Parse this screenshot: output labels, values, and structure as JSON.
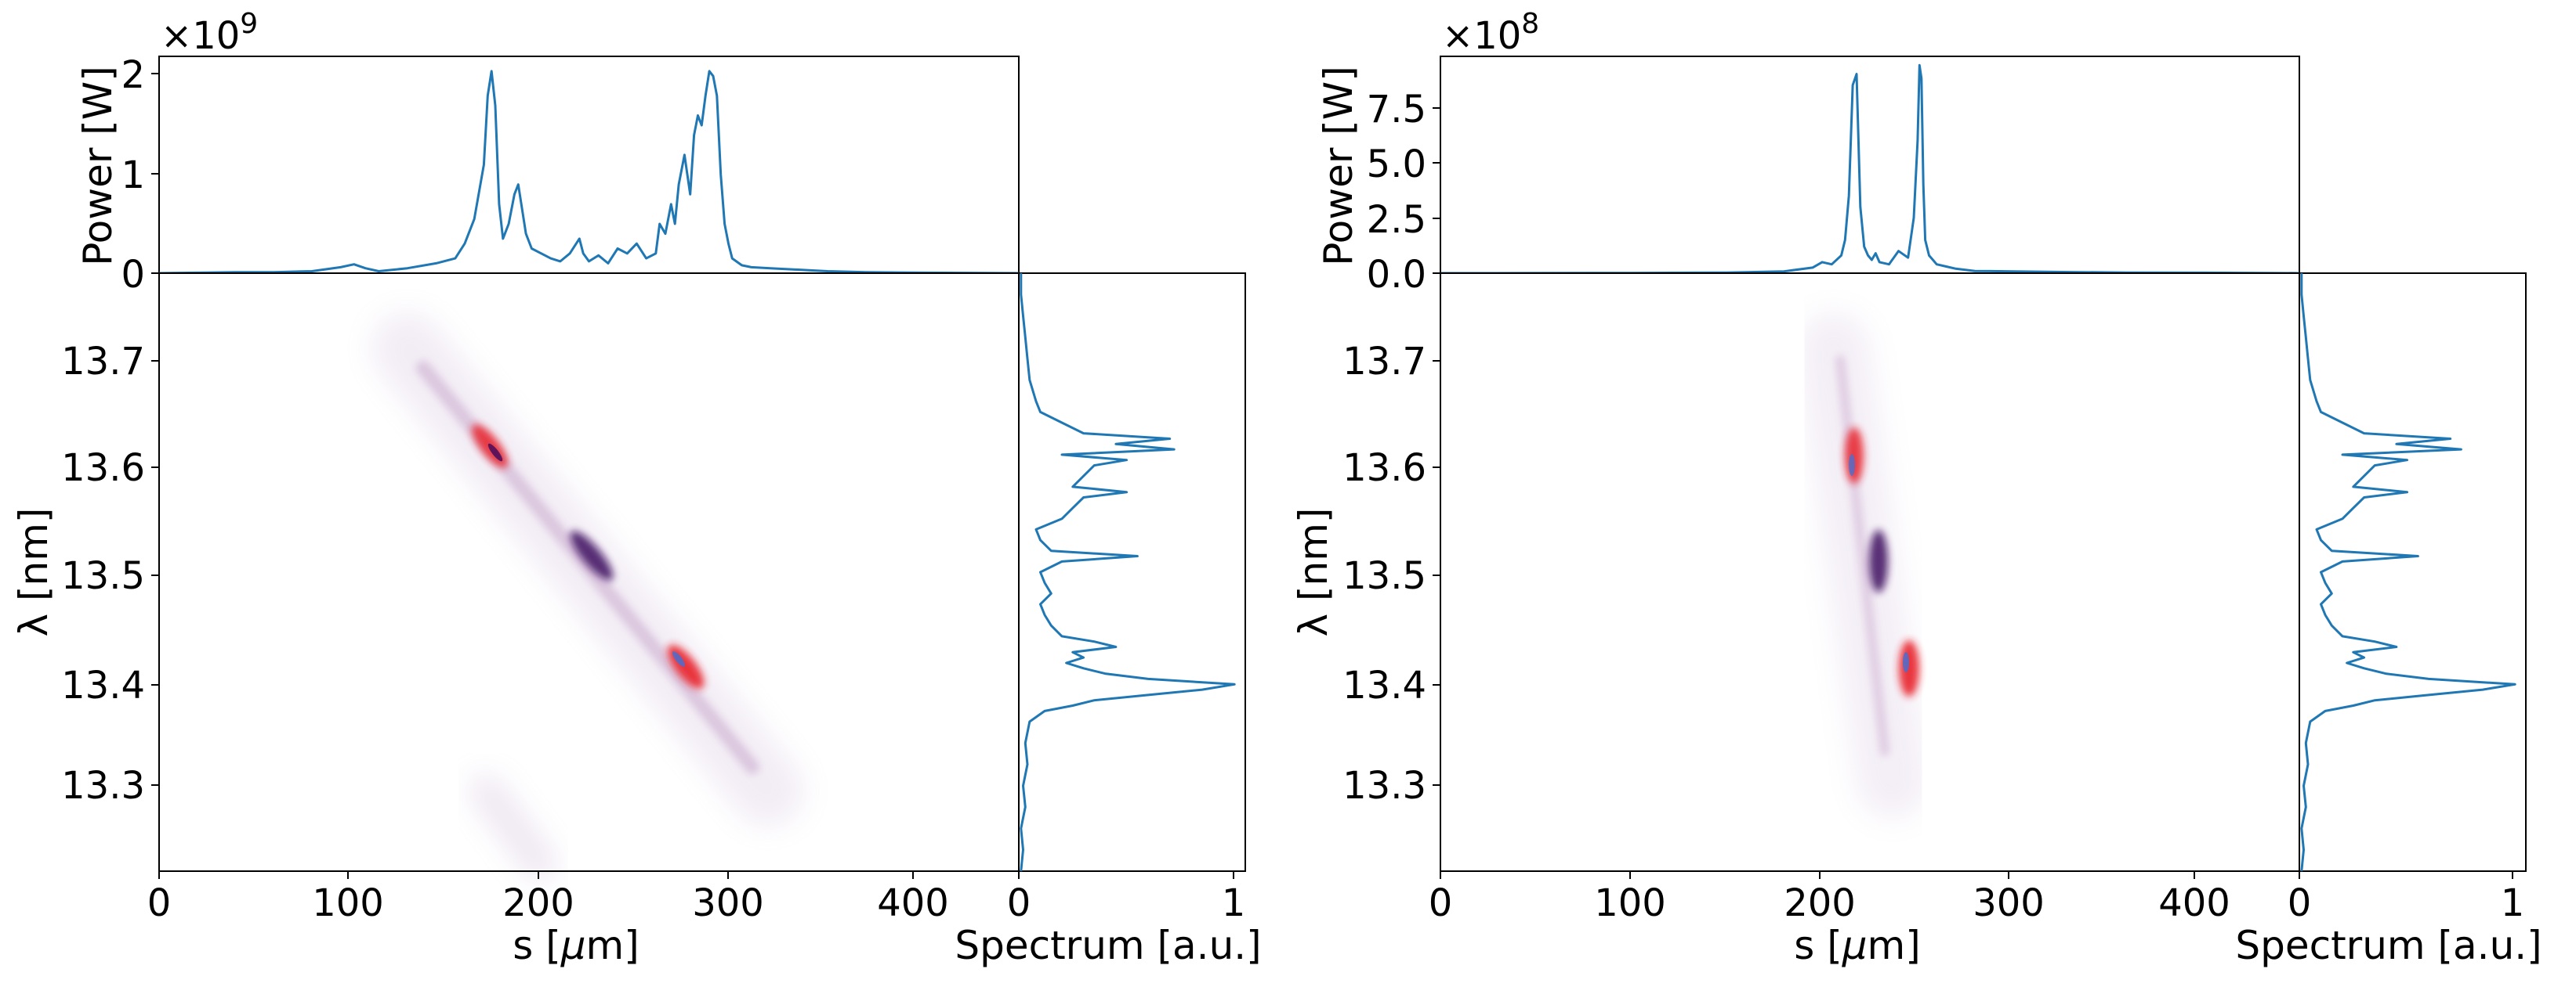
{
  "figure": {
    "panels": [
      {
        "power_offset_text": "×10",
        "power_offset_exp": "9",
        "power_yticks": [
          "0",
          "1",
          "2"
        ],
        "power_ylabel": "Power [W]",
        "map_yticks": [
          "13.3",
          "13.4",
          "13.5",
          "13.6",
          "13.7"
        ],
        "map_ylabel": "λ [nm]",
        "map_xticks": [
          "0",
          "100",
          "200",
          "300",
          "400"
        ],
        "map_xlabel_prefix": "s [",
        "map_xlabel_mu": "μ",
        "map_xlabel_suffix": "m]",
        "spec_xticks": [
          "0",
          "1"
        ],
        "spec_xlabel": "Spectrum [a.u.]"
      },
      {
        "power_offset_text": "×10",
        "power_offset_exp": "8",
        "power_yticks": [
          "0.0",
          "2.5",
          "5.0",
          "7.5"
        ],
        "power_ylabel": "Power [W]",
        "map_yticks": [
          "13.3",
          "13.4",
          "13.5",
          "13.6",
          "13.7"
        ],
        "map_ylabel": "λ [nm]",
        "map_xticks": [
          "0",
          "100",
          "200",
          "300",
          "400"
        ],
        "map_xlabel_prefix": "s [",
        "map_xlabel_mu": "μ",
        "map_xlabel_suffix": "m]",
        "spec_xticks": [
          "0",
          "1"
        ],
        "spec_xlabel": "Spectrum [a.u.]"
      }
    ]
  },
  "colors": {
    "line": "#1f77b4",
    "map_dark": "#3d0a5e",
    "map_mid": "#8b3f8f",
    "map_red": "#e8202a",
    "map_blue": "#4a6fd0"
  },
  "chart_data": [
    {
      "type": "line",
      "x": [
        0,
        20,
        40,
        60,
        80,
        95,
        102,
        108,
        115,
        130,
        145,
        155,
        160,
        165,
        170,
        172,
        174,
        176,
        178,
        180,
        183,
        186,
        188,
        190,
        192,
        195,
        200,
        205,
        210,
        215,
        220,
        222,
        225,
        230,
        235,
        240,
        245,
        250,
        255,
        260,
        262,
        265,
        268,
        270,
        272,
        275,
        278,
        280,
        282,
        284,
        286,
        288,
        290,
        292,
        294,
        296,
        298,
        300,
        305,
        310,
        320,
        330,
        340,
        350,
        370,
        400,
        450
      ],
      "y": [
        0,
        0.005,
        0.01,
        0.01,
        0.02,
        0.06,
        0.09,
        0.05,
        0.02,
        0.05,
        0.1,
        0.15,
        0.3,
        0.55,
        1.1,
        1.8,
        2.05,
        1.7,
        0.7,
        0.35,
        0.5,
        0.8,
        0.9,
        0.65,
        0.4,
        0.25,
        0.2,
        0.15,
        0.12,
        0.2,
        0.35,
        0.2,
        0.12,
        0.18,
        0.1,
        0.25,
        0.2,
        0.3,
        0.15,
        0.2,
        0.5,
        0.4,
        0.7,
        0.5,
        0.9,
        1.2,
        0.8,
        1.4,
        1.6,
        1.5,
        1.8,
        2.05,
        2.0,
        1.8,
        1.0,
        0.5,
        0.3,
        0.15,
        0.08,
        0.06,
        0.05,
        0.04,
        0.03,
        0.02,
        0.01,
        0.005,
        0
      ],
      "xlim": [
        0,
        450
      ],
      "ylim": [
        0,
        2.2
      ],
      "ylabel": "Power [W]",
      "y_scale_factor": "×10^9"
    },
    {
      "type": "heatmap",
      "xlabel": "s [μm]",
      "ylabel": "λ [nm]",
      "xlim": [
        0,
        450
      ],
      "ylim": [
        13.22,
        13.78
      ],
      "features": [
        {
          "kind": "streak",
          "from": [
            140,
            13.72
          ],
          "to": [
            345,
            13.31
          ],
          "intensity": 0.12
        },
        {
          "kind": "streak",
          "from": [
            185,
            13.3
          ],
          "to": [
            205,
            13.23
          ],
          "intensity": 0.1
        },
        {
          "kind": "spot",
          "x": 180,
          "y": 13.615,
          "color": "red"
        },
        {
          "kind": "spot",
          "x": 228,
          "y": 13.51,
          "color": "dark"
        },
        {
          "kind": "spot",
          "x": 284,
          "y": 13.405,
          "color": "red"
        }
      ]
    },
    {
      "type": "line",
      "orientation": "vertical",
      "y": [
        13.22,
        13.24,
        13.26,
        13.28,
        13.3,
        13.32,
        13.34,
        13.36,
        13.37,
        13.375,
        13.38,
        13.385,
        13.39,
        13.395,
        13.4,
        13.405,
        13.41,
        13.415,
        13.42,
        13.425,
        13.43,
        13.435,
        13.44,
        13.45,
        13.46,
        13.47,
        13.48,
        13.49,
        13.5,
        13.51,
        13.515,
        13.52,
        13.53,
        13.54,
        13.55,
        13.56,
        13.57,
        13.575,
        13.58,
        13.59,
        13.6,
        13.605,
        13.61,
        13.615,
        13.62,
        13.625,
        13.63,
        13.64,
        13.65,
        13.66,
        13.68,
        13.7,
        13.72,
        13.74,
        13.76,
        13.78
      ],
      "x": [
        0.01,
        0.02,
        0.01,
        0.03,
        0.02,
        0.04,
        0.03,
        0.05,
        0.12,
        0.25,
        0.35,
        0.6,
        0.85,
        1.0,
        0.6,
        0.4,
        0.3,
        0.22,
        0.3,
        0.25,
        0.45,
        0.35,
        0.2,
        0.15,
        0.12,
        0.1,
        0.15,
        0.12,
        0.1,
        0.2,
        0.55,
        0.15,
        0.1,
        0.08,
        0.2,
        0.25,
        0.3,
        0.5,
        0.25,
        0.3,
        0.35,
        0.5,
        0.2,
        0.72,
        0.45,
        0.7,
        0.3,
        0.2,
        0.1,
        0.08,
        0.05,
        0.04,
        0.03,
        0.02,
        0.01,
        0.01
      ],
      "xlim": [
        0,
        1.05
      ],
      "ylim": [
        13.22,
        13.78
      ],
      "xlabel": "Spectrum [a.u.]"
    },
    {
      "type": "line",
      "x": [
        0,
        50,
        100,
        150,
        180,
        195,
        200,
        205,
        210,
        212,
        214,
        216,
        218,
        220,
        222,
        224,
        226,
        228,
        230,
        235,
        240,
        245,
        248,
        250,
        251,
        252,
        253,
        254,
        256,
        258,
        260,
        265,
        270,
        280,
        300,
        330,
        360,
        400,
        450
      ],
      "y": [
        0,
        0.005,
        0.01,
        0.03,
        0.08,
        0.25,
        0.5,
        0.4,
        0.8,
        1.5,
        3.5,
        8.5,
        9.0,
        3.0,
        1.2,
        0.8,
        0.6,
        0.9,
        0.5,
        0.4,
        1.0,
        0.7,
        2.5,
        6.0,
        9.4,
        8.8,
        4.0,
        1.5,
        0.8,
        0.6,
        0.4,
        0.3,
        0.2,
        0.1,
        0.08,
        0.05,
        0.03,
        0.02,
        0
      ],
      "xlim": [
        0,
        450
      ],
      "ylim": [
        0,
        9.8
      ],
      "ylabel": "Power [W]",
      "y_scale_factor": "×10^8"
    },
    {
      "type": "heatmap",
      "xlabel": "s [μm]",
      "ylabel": "λ [nm]",
      "xlim": [
        0,
        450
      ],
      "ylim": [
        13.22,
        13.78
      ],
      "features": [
        {
          "kind": "streak",
          "from": [
            218,
            13.72
          ],
          "to": [
            252,
            13.3
          ],
          "intensity": 0.12
        },
        {
          "kind": "spot",
          "x": 220,
          "y": 13.61,
          "color": "red"
        },
        {
          "kind": "spot",
          "x": 232,
          "y": 13.52,
          "color": "dark"
        },
        {
          "kind": "spot",
          "x": 250,
          "y": 13.405,
          "color": "red"
        }
      ]
    },
    {
      "type": "line",
      "orientation": "vertical",
      "y": [
        13.22,
        13.24,
        13.26,
        13.28,
        13.3,
        13.32,
        13.34,
        13.36,
        13.37,
        13.375,
        13.38,
        13.385,
        13.39,
        13.395,
        13.4,
        13.405,
        13.41,
        13.415,
        13.42,
        13.425,
        13.43,
        13.435,
        13.44,
        13.45,
        13.46,
        13.47,
        13.48,
        13.49,
        13.5,
        13.51,
        13.515,
        13.52,
        13.53,
        13.54,
        13.55,
        13.56,
        13.57,
        13.575,
        13.58,
        13.59,
        13.6,
        13.605,
        13.61,
        13.615,
        13.62,
        13.625,
        13.63,
        13.64,
        13.65,
        13.66,
        13.68,
        13.7,
        13.72,
        13.74,
        13.76,
        13.78
      ],
      "x": [
        0.01,
        0.02,
        0.01,
        0.03,
        0.02,
        0.04,
        0.03,
        0.05,
        0.12,
        0.25,
        0.35,
        0.6,
        0.85,
        1.0,
        0.6,
        0.4,
        0.3,
        0.22,
        0.3,
        0.25,
        0.45,
        0.35,
        0.2,
        0.15,
        0.12,
        0.1,
        0.15,
        0.12,
        0.1,
        0.2,
        0.55,
        0.15,
        0.1,
        0.08,
        0.2,
        0.25,
        0.3,
        0.5,
        0.25,
        0.3,
        0.35,
        0.5,
        0.2,
        0.75,
        0.45,
        0.7,
        0.3,
        0.2,
        0.1,
        0.08,
        0.05,
        0.04,
        0.03,
        0.02,
        0.01,
        0.01
      ],
      "xlim": [
        0,
        1.05
      ],
      "ylim": [
        13.22,
        13.78
      ],
      "xlabel": "Spectrum [a.u.]"
    }
  ]
}
